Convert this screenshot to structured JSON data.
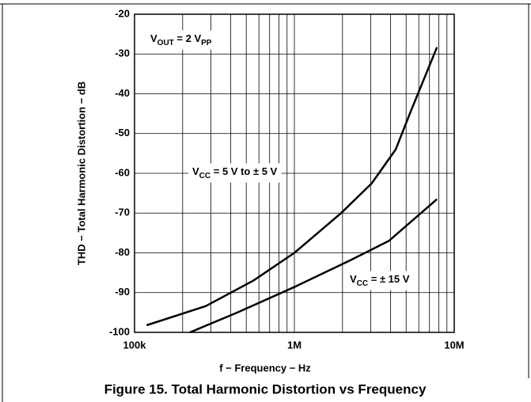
{
  "chart_data": {
    "type": "line",
    "xlabel": "f − Frequency − Hz",
    "ylabel": "THD − Total Harmonic Distortion − dB",
    "caption": "Figure 15. Total Harmonic Distortion vs Frequency",
    "xscale": "log",
    "xlim": [
      100000,
      10000000
    ],
    "xticks": [
      {
        "value": 100000,
        "label": "100k"
      },
      {
        "value": 1000000,
        "label": "1M"
      },
      {
        "value": 10000000,
        "label": "10M"
      }
    ],
    "ylim": [
      -100,
      -20
    ],
    "yticks": [
      -100,
      -90,
      -80,
      -70,
      -60,
      -50,
      -40,
      -30,
      -20
    ],
    "grid": true,
    "annotations": [
      {
        "parts": [
          "V",
          "OUT",
          " = 2 V",
          "PP"
        ]
      },
      {
        "parts": [
          "V",
          "CC",
          " = 5 V to ± 5 V"
        ]
      },
      {
        "parts": [
          "V",
          "CC",
          " = ± 15 V"
        ]
      }
    ],
    "series": [
      {
        "color": "#000000",
        "x": [
          119000,
          279000,
          553000,
          1000000,
          1960000,
          3050000,
          4300000,
          5400000,
          7800000
        ],
        "values": [
          -98.2,
          -93.4,
          -87,
          -80,
          -70,
          -62.5,
          -54,
          -44,
          -28.3
        ]
      },
      {
        "color": "#000000",
        "x": [
          222000,
          440000,
          1000000,
          2200000,
          3900000,
          7800000
        ],
        "values": [
          -100,
          -95,
          -88.6,
          -82,
          -77,
          -66.5
        ]
      }
    ]
  }
}
